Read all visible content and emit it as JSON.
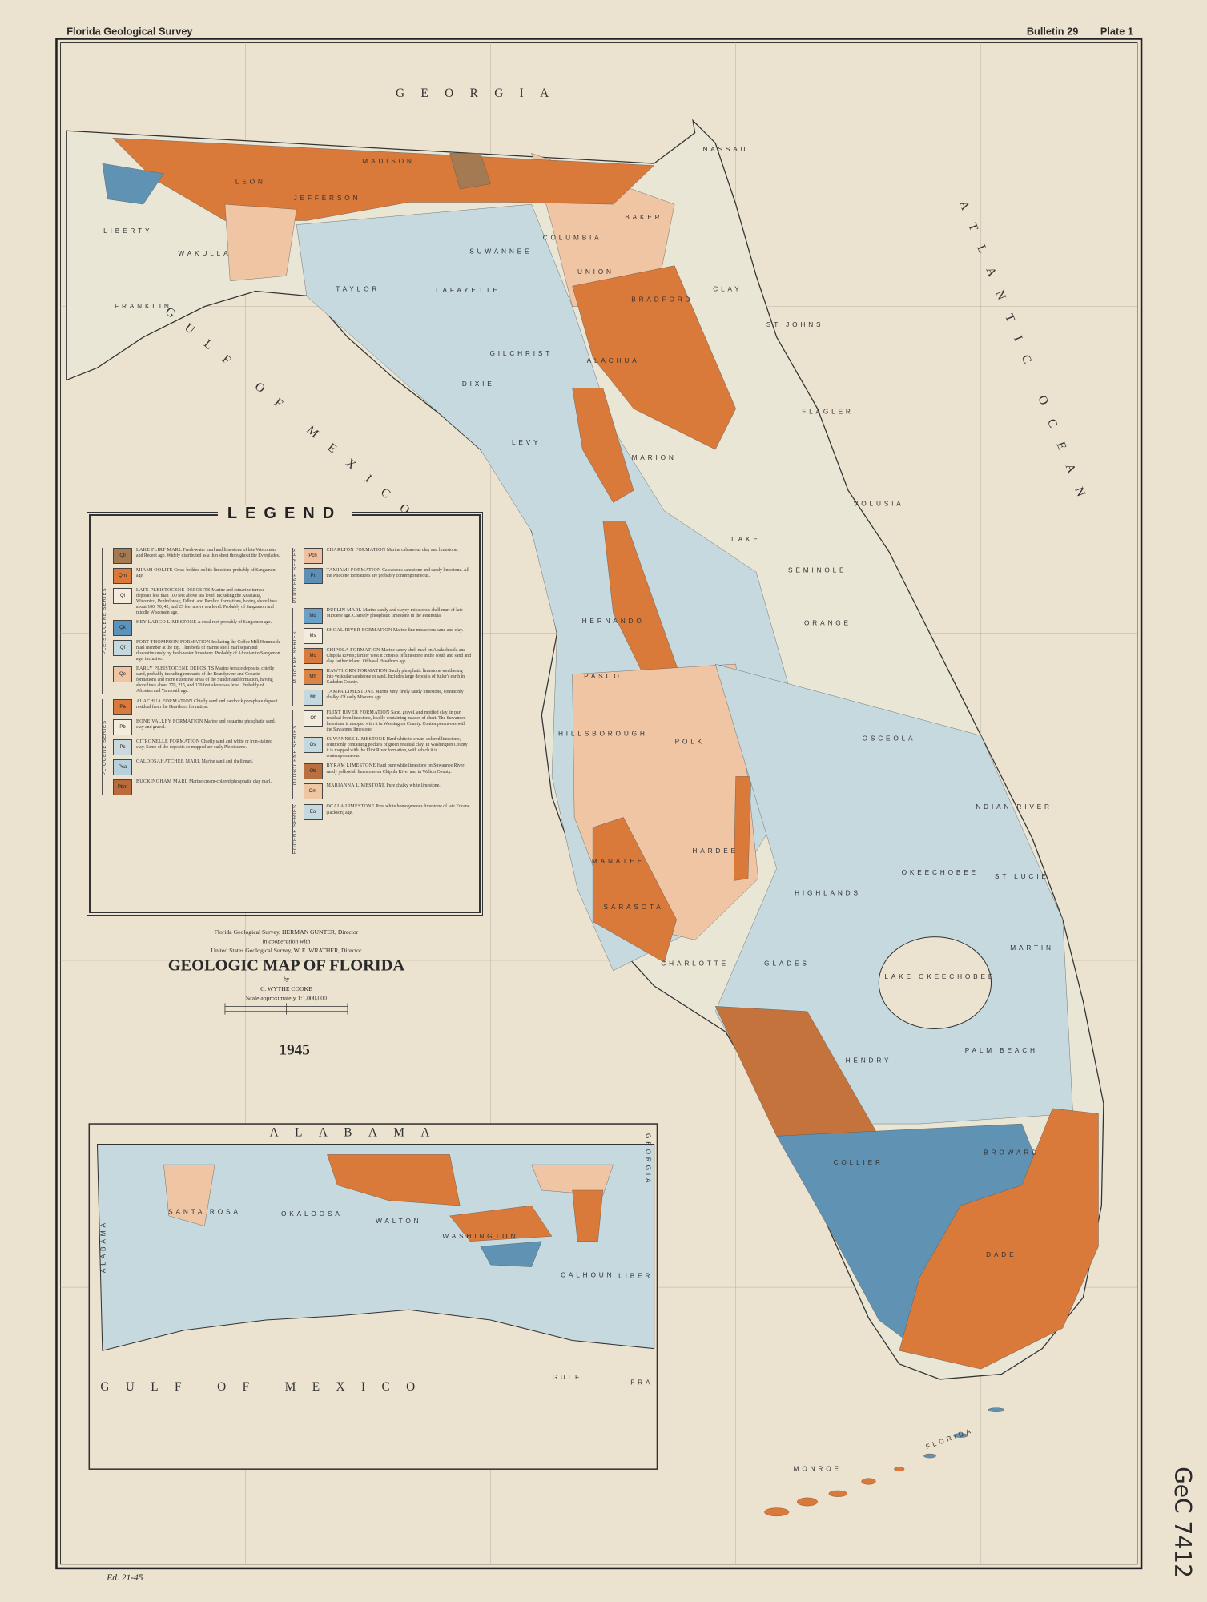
{
  "header": {
    "left": "Florida Geological Survey",
    "bulletin": "Bulletin 29",
    "plate": "Plate 1"
  },
  "map": {
    "labels": [
      "GEORGIA",
      "ATLANTIC OCEAN",
      "GULF OF MEXICO",
      "LIBERTY",
      "WAKULLA",
      "FRANKLIN",
      "LEON",
      "JEFFERSON",
      "MADISON",
      "TAYLOR",
      "LAFAYETTE",
      "SUWANNEE",
      "COLUMBIA",
      "BAKER",
      "NASSAU",
      "UNION",
      "BRADFORD",
      "CLAY",
      "ST JOHNS",
      "GILCHRIST",
      "ALACHUA",
      "DIXIE",
      "FLAGLER",
      "LEVY",
      "MARION",
      "VOLUSIA",
      "LAKE",
      "SEMINOLE",
      "ORANGE",
      "HERNANDO",
      "PASCO",
      "HILLSBOROUGH",
      "POLK",
      "OSCEOLA",
      "INDIAN RIVER",
      "MANATEE",
      "HARDEE",
      "HIGHLANDS",
      "OKEECHOBEE",
      "ST LUCIE",
      "SARASOTA",
      "CHARLOTTE",
      "GLADES",
      "LAKE OKEECHOBEE",
      "MARTIN",
      "PALM BEACH",
      "HENDRY",
      "COLLIER",
      "BROWARD",
      "DADE",
      "MONROE",
      "FLORIDA"
    ]
  },
  "inset": {
    "labels": [
      "ALABAMA",
      "GEORGIA",
      "ALABAMA",
      "SANTA ROSA",
      "OKALOOSA",
      "WALTON",
      "WASHINGTON",
      "CALHOUN",
      "LIBER",
      "GULF",
      "FRA",
      "GULF OF MEXICO"
    ]
  },
  "title_block": {
    "line1": "Florida Geological Survey, HERMAN GUNTER, Director",
    "line2": "in cooperation with",
    "line3": "United States Geological Survey, W. E. WRATHER, Director",
    "title": "GEOLOGIC MAP OF FLORIDA",
    "by": "by",
    "author": "C. WYTHE COOKE",
    "scale": "Scale approximately 1:1,000,000",
    "year": "1945"
  },
  "annotations": {
    "stamp": "GeC 7412",
    "note": "Ed. 21-45"
  },
  "legend": {
    "title": "LEGEND",
    "columns": [
      {
        "groups": [
          {
            "series": "PLEISTOCENE SERIES",
            "entries": [
              {
                "symbol": "Qll",
                "color": "#a47a52",
                "name": "LAKE FLIRT MARL",
                "description": "Fresh-water marl and limestone of late Wisconsin and Recent age. Widely distributed as a thin sheet throughout the Everglades."
              },
              {
                "symbol": "Qm",
                "color": "#d9793a",
                "name": "MIAMI OOLITE",
                "description": "Cross-bedded oolitic limestone probably of Sangamon age."
              },
              {
                "symbol": "Ql",
                "color": "#f3ecdc",
                "name": "LATE PLEISTOCENE DEPOSITS",
                "description": "Marine and estuarine terrace deposits less than 100 feet above sea level, including the Anastasia, Wicomico, Penholoway, Talbot, and Pamlico formations, having shore lines about 100, 70, 42, and 25 feet above sea level. Probably of Sangamon and middle Wisconsin age."
              },
              {
                "symbol": "Qk",
                "color": "#5c93bd",
                "name": "KEY LARGO LIMESTONE",
                "description": "A coral reef probably of Sangamon age."
              },
              {
                "symbol": "Qf",
                "color": "#c4d8df",
                "name": "FORT THOMPSON FORMATION",
                "description": "Including the Coffee Mill Hammock marl member at the top. Thin beds of marine shell marl separated discontinuously by fresh-water limestone. Probably of Aftonian to Sangamon age, inclusive."
              },
              {
                "symbol": "Qe",
                "color": "#efc6a4",
                "name": "EARLY PLEISTOCENE DEPOSITS",
                "description": "Marine terrace deposits, chiefly sand, probably including remnants of the Brandywine and Coharie formations and more extensive areas of the Sunderland formation, having shore lines about 270, 215, and 170 feet above sea level. Probably of Aftonian and Yarmouth age."
              }
            ]
          },
          {
            "series": "PLIOCENE SERIES",
            "entries": [
              {
                "symbol": "Pa",
                "color": "#d9793a",
                "name": "ALACHUA FORMATION",
                "description": "Chiefly sand and hardrock phosphate deposit residual from the Hawthorn formation."
              },
              {
                "symbol": "Pb",
                "color": "#f3ecdc",
                "name": "BONE VALLEY FORMATION",
                "description": "Marine and estuarine phosphatic sand, clay and gravel."
              },
              {
                "symbol": "Pc",
                "color": "#cbd9dc",
                "name": "CITRONELLE FORMATION",
                "description": "Chiefly sand and white or iron-stained clay. Some of the deposits so mapped are early Pleistocene."
              },
              {
                "symbol": "Pca",
                "color": "#b6d0dc",
                "name": "CALOOSAHATCHEE MARL",
                "description": "Marine sand and shell marl."
              },
              {
                "symbol": "Pbm",
                "color": "#b96b3c",
                "name": "BUCKINGHAM MARL",
                "description": "Marine cream-colored phosphatic clay marl."
              }
            ]
          }
        ]
      },
      {
        "groups": [
          {
            "series": "PLIOCENE SERIES",
            "entries": [
              {
                "symbol": "Pch",
                "color": "#efc0a0",
                "name": "CHARLTON FORMATION",
                "description": "Marine calcareous clay and limestone."
              },
              {
                "symbol": "Pt",
                "color": "#5d8fb5",
                "name": "TAMIAMI FORMATION",
                "description": "Calcareous sandstone and sandy limestone. All the Pliocene formations are probably contemporaneous."
              }
            ]
          },
          {
            "series": "MIOCENE SERIES",
            "entries": [
              {
                "symbol": "Md",
                "color": "#6a9fc6",
                "name": "DUPLIN MARL",
                "description": "Marine sandy and clayey micaceous shell marl of late Miocene age. Coarsely phosphatic limestone in the Peninsula."
              },
              {
                "symbol": "Ms",
                "color": "#f3ecdc",
                "name": "SHOAL RIVER FORMATION",
                "description": "Marine fine micaceous sand and clay."
              },
              {
                "symbol": "Mc",
                "color": "#d9793a",
                "name": "CHIPOLA FORMATION",
                "description": "Marine sandy shell marl on Apalachicola and Chipola Rivers; farther west it consists of limestone in the south and sand and clay farther inland. Of basal Hawthorn age."
              },
              {
                "symbol": "Mh",
                "color": "#dc8444",
                "name": "HAWTHORN FORMATION",
                "description": "Sandy phosphatic limestone weathering into vesicular sandstone or sand. Includes large deposits of fuller's earth in Gadsden County."
              },
              {
                "symbol": "Mt",
                "color": "#c4d8df",
                "name": "TAMPA LIMESTONE",
                "description": "Marine very finely sandy limestone, commonly chalky. Of early Miocene age."
              }
            ]
          },
          {
            "series": "OLIGOCENE SERIES",
            "entries": [
              {
                "symbol": "Of",
                "color": "#f3ecdc",
                "name": "FLINT RIVER FORMATION",
                "description": "Sand, gravel, and mottled clay, in part residual from limestone, locally containing masses of chert. The Suwannee limestone is mapped with it in Washington County. Contemporaneous with the Suwannee limestone."
              },
              {
                "symbol": "Os",
                "color": "#c4d8df",
                "name": "SUWANNEE LIMESTONE",
                "description": "Hard white to cream-colored limestone, commonly containing pockets of green residual clay. In Washington County it is mapped with the Flint River formation, with which it is contemporaneous."
              },
              {
                "symbol": "Ob",
                "color": "#b87040",
                "name": "BYRAM LIMESTONE",
                "description": "Hard pure white limestone on Suwannee River; sandy yellowish limestone on Chipola River and in Walton County."
              },
              {
                "symbol": "Om",
                "color": "#efc6a4",
                "name": "MARIANNA LIMESTONE",
                "description": "Pure chalky white limestone."
              }
            ]
          },
          {
            "series": "EOCENE SERIES",
            "entries": [
              {
                "symbol": "Eo",
                "color": "#c4d8df",
                "name": "OCALA LIMESTONE",
                "description": "Pure white homogeneous limestone of late Eocene (Jackson) age."
              }
            ]
          }
        ]
      }
    ]
  }
}
